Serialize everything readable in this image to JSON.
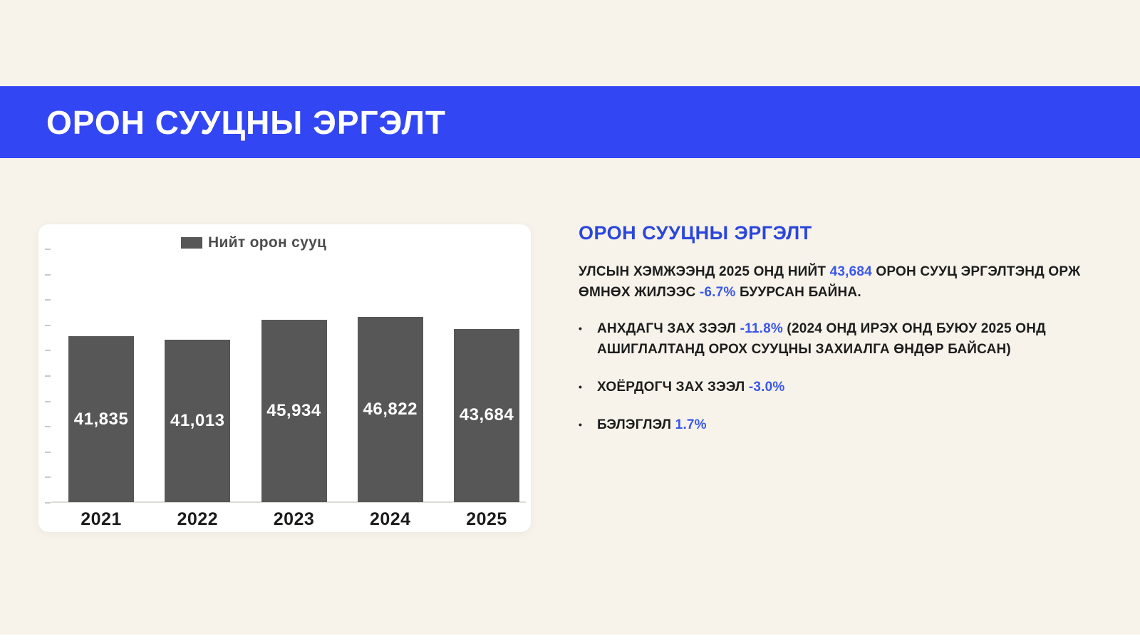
{
  "colors": {
    "background": "#F7F3EB",
    "banner": "#3346F3",
    "accent": "#2B46DB",
    "inline_accent": "#3A57E8",
    "bar": "#575757",
    "body_text": "#1D1D1D",
    "card": "#FFFFFF"
  },
  "banner": {
    "title": "ОРОН СУУЦНЫ ЭРГЭЛТ"
  },
  "chart_data": {
    "type": "bar",
    "title": "",
    "legend": "Нийт орон сууц",
    "categories": [
      "2021",
      "2022",
      "2023",
      "2024",
      "2025"
    ],
    "values": [
      41835,
      41013,
      45934,
      46822,
      43684
    ],
    "value_labels": [
      "41,835",
      "41,013",
      "45,934",
      "46,822",
      "43,684"
    ],
    "bar_color": "#575757",
    "xlabel": "",
    "ylabel": "",
    "ylim": [
      0,
      64000
    ],
    "y_tick_count": 11,
    "y_tick_labels_visible": false,
    "grid": false,
    "legend_position": "top",
    "value_label_position": "inside-center",
    "value_label_color": "#FFFFFF"
  },
  "panel": {
    "title": "ОРОН СУУЦНЫ ЭРГЭЛТ",
    "paragraph": [
      {
        "t": "УЛСЫН ХЭМЖЭЭНД 2025 ОНД НИЙТ ",
        "b": false
      },
      {
        "t": "43,684",
        "b": true
      },
      {
        "t": " ОРОН СУУЦ ЭРГЭЛТЭНД ОРЖ ӨМНӨХ ЖИЛЭЭС ",
        "b": false
      },
      {
        "t": "-6.7%",
        "b": true
      },
      {
        "t": " БУУРСАН БАЙНА.",
        "b": false
      }
    ],
    "bullet_glyph": "•",
    "bullets": [
      [
        {
          "t": "АНХДАГЧ ЗАХ ЗЭЭЛ ",
          "b": false
        },
        {
          "t": "-11.8%",
          "b": true
        },
        {
          "t": " (2024 ОНД ИРЭХ ОНД БУЮУ 2025 ОНД АШИГЛАЛТАНД ОРОХ СУУЦНЫ ЗАХИАЛГА ӨНДӨР БАЙСАН)",
          "b": false
        }
      ],
      [
        {
          "t": "ХОЁРДОГЧ ЗАХ ЗЭЭЛ ",
          "b": false
        },
        {
          "t": "-3.0%",
          "b": true
        }
      ],
      [
        {
          "t": "БЭЛЭГЛЭЛ ",
          "b": false
        },
        {
          "t": "1.7%",
          "b": true
        }
      ]
    ]
  }
}
